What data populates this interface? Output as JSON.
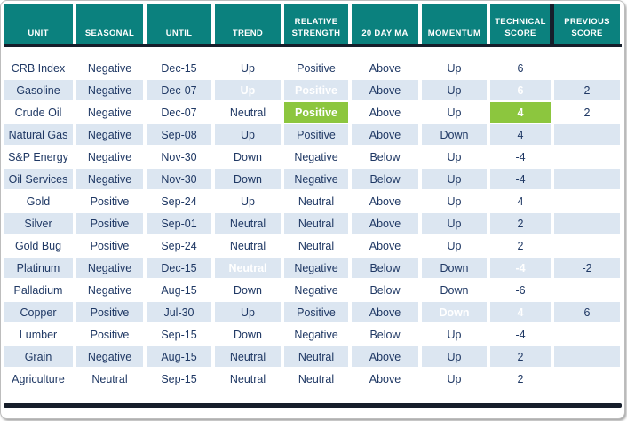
{
  "colors": {
    "header_bg": "#0B817E",
    "dark_border": "#161E2B",
    "text_navy": "#1F3864",
    "row_alt_blue": "#DCE6F1",
    "highlight_green": "#8CC63E",
    "highlight_red": "#F9434B"
  },
  "chart_data": {
    "type": "table",
    "columns": [
      "UNIT",
      "SEASONAL",
      "UNTIL",
      "TREND",
      "RELATIVE STRENGTH",
      "20 DAY MA",
      "MOMENTUM",
      "TECHNICAL SCORE",
      "PREVIOUS SCORE"
    ],
    "rows": [
      {
        "cells": [
          "CRB Index",
          "Negative",
          "Dec-15",
          "Up",
          "Positive",
          "Above",
          "Up",
          "6",
          ""
        ]
      },
      {
        "cells": [
          "Gasoline",
          "Negative",
          "Dec-07",
          {
            "v": "Up",
            "hl": "green"
          },
          {
            "v": "Positive",
            "hl": "green"
          },
          "Above",
          "Up",
          {
            "v": "6",
            "hl": "green"
          },
          "2"
        ]
      },
      {
        "cells": [
          "Crude Oil",
          "Negative",
          "Dec-07",
          "Neutral",
          {
            "v": "Positive",
            "hl": "green"
          },
          "Above",
          "Up",
          {
            "v": "4",
            "hl": "green"
          },
          "2"
        ]
      },
      {
        "cells": [
          "Natural Gas",
          "Negative",
          "Sep-08",
          "Up",
          "Positive",
          "Above",
          "Down",
          "4",
          ""
        ]
      },
      {
        "cells": [
          "S&P Energy",
          "Negative",
          "Nov-30",
          "Down",
          "Negative",
          "Below",
          "Up",
          "-4",
          ""
        ]
      },
      {
        "cells": [
          "Oil Services",
          "Negative",
          "Nov-30",
          "Down",
          "Negative",
          "Below",
          "Up",
          "-4",
          ""
        ]
      },
      {
        "cells": [
          "Gold",
          "Positive",
          "Sep-24",
          "Up",
          "Neutral",
          "Above",
          "Up",
          "4",
          ""
        ]
      },
      {
        "cells": [
          "Silver",
          "Positive",
          "Sep-01",
          "Neutral",
          "Neutral",
          "Above",
          "Up",
          "2",
          ""
        ]
      },
      {
        "cells": [
          "Gold Bug",
          "Positive",
          "Sep-24",
          "Neutral",
          "Neutral",
          "Above",
          "Up",
          "2",
          ""
        ]
      },
      {
        "cells": [
          "Platinum",
          "Negative",
          "Dec-15",
          {
            "v": "Neutral",
            "hl": "red"
          },
          "Negative",
          "Below",
          "Down",
          {
            "v": "-4",
            "hl": "red"
          },
          "-2"
        ]
      },
      {
        "cells": [
          "Palladium",
          "Negative",
          "Aug-15",
          "Down",
          "Negative",
          "Below",
          "Down",
          "-6",
          ""
        ]
      },
      {
        "cells": [
          "Copper",
          "Positive",
          "Jul-30",
          "Up",
          "Positive",
          "Above",
          {
            "v": "Down",
            "hl": "red"
          },
          {
            "v": "4",
            "hl": "red"
          },
          "6"
        ]
      },
      {
        "cells": [
          "Lumber",
          "Positive",
          "Sep-15",
          "Down",
          "Negative",
          "Below",
          "Up",
          "-4",
          ""
        ]
      },
      {
        "cells": [
          "Grain",
          "Negative",
          "Aug-15",
          "Neutral",
          "Neutral",
          "Above",
          "Up",
          "2",
          ""
        ]
      },
      {
        "cells": [
          "Agriculture",
          "Neutral",
          "Sep-15",
          "Neutral",
          "Neutral",
          "Above",
          "Up",
          "2",
          ""
        ]
      }
    ],
    "legend": {
      "green_cells": "favorable change highlight",
      "red_cells": "unfavorable change highlight",
      "alt_row_fill": "every second row shaded light blue"
    }
  }
}
